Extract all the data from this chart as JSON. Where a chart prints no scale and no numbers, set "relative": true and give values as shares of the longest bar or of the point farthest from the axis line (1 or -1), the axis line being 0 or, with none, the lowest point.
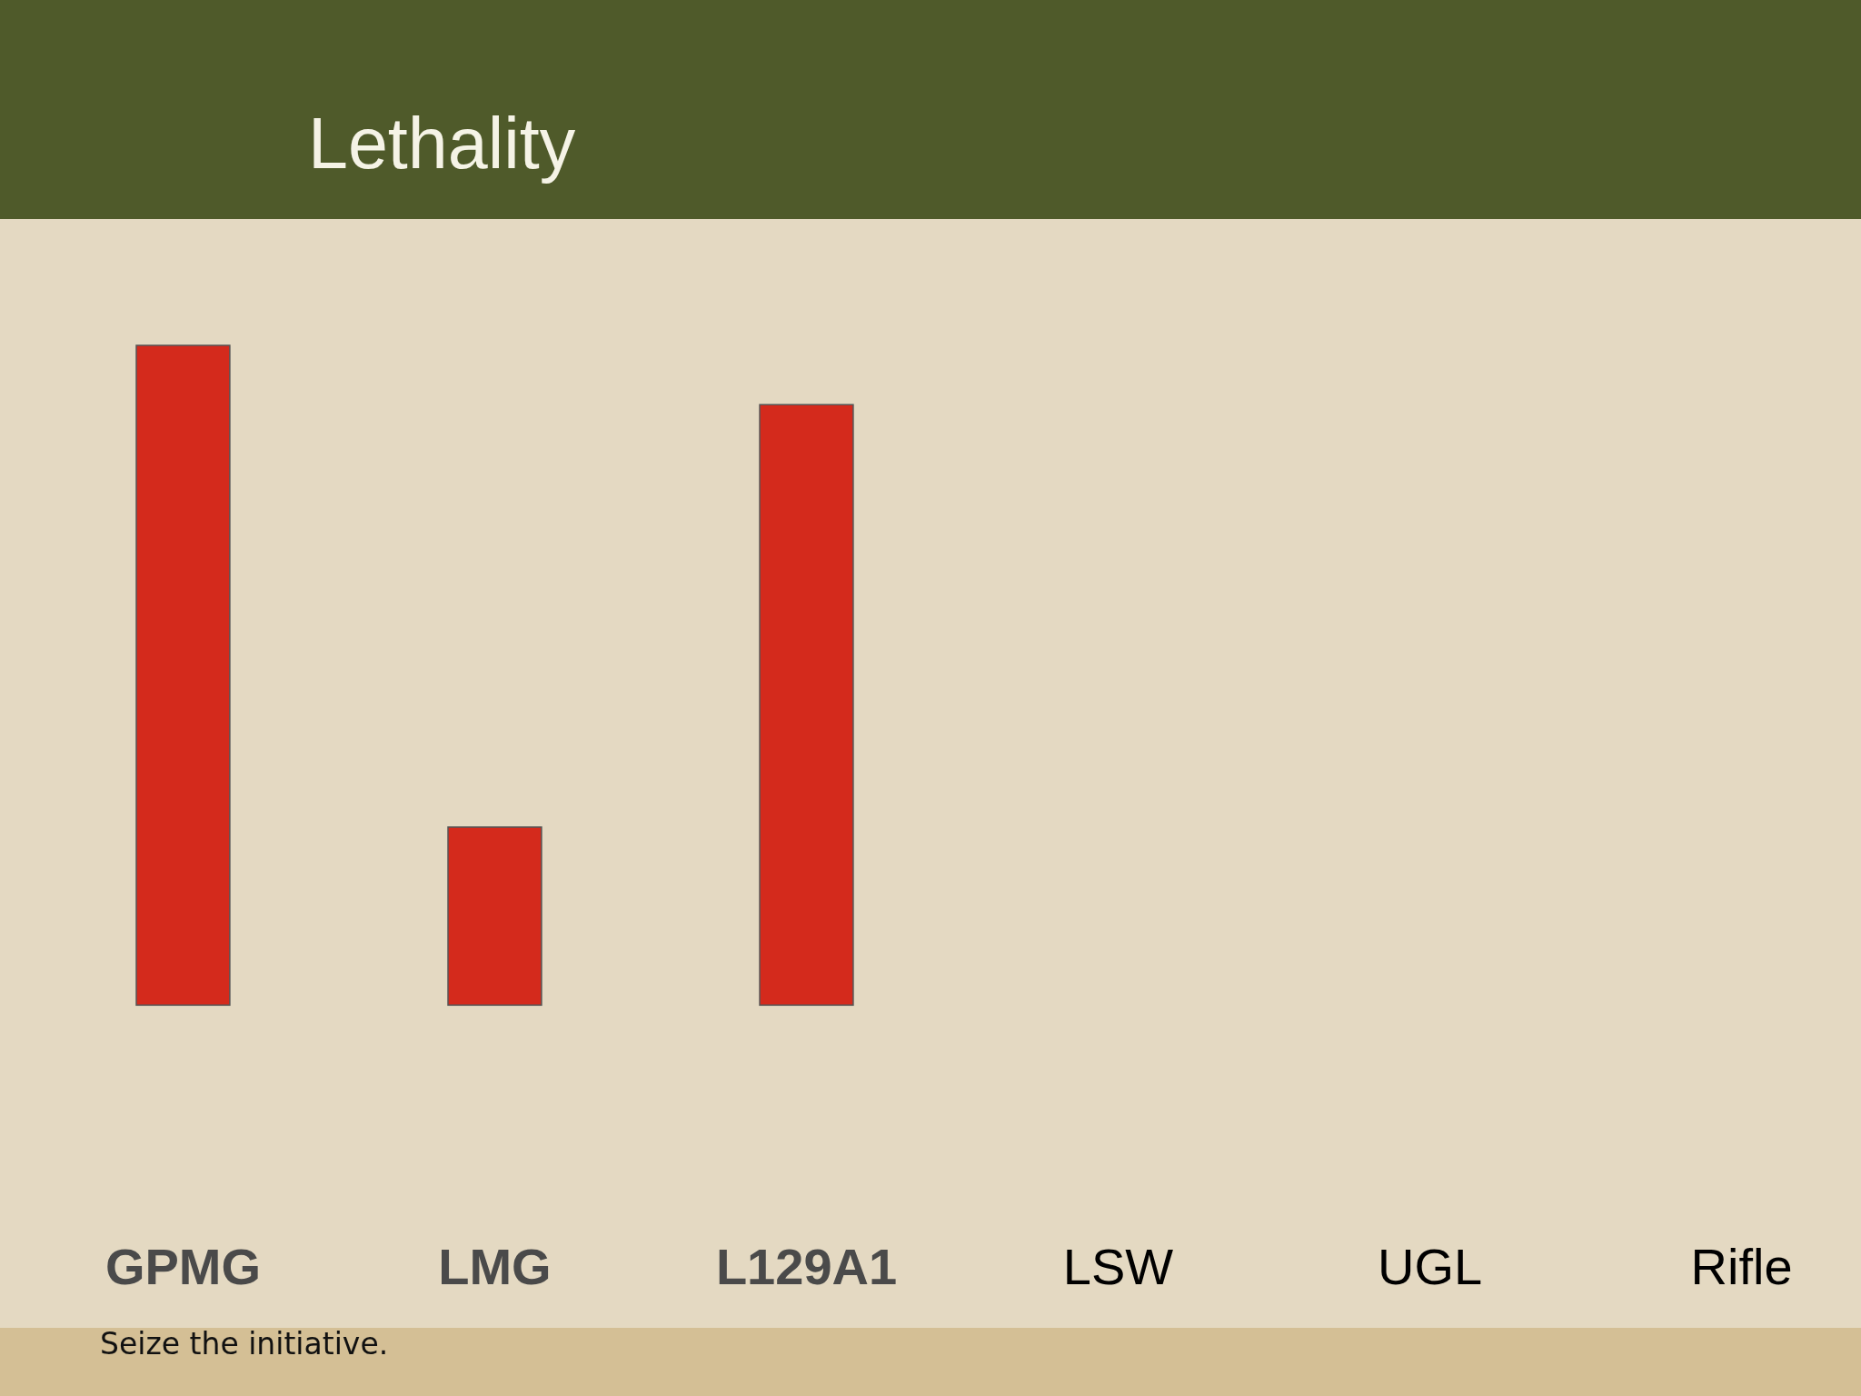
{
  "chart_data": {
    "type": "bar",
    "title": "Lethality",
    "categories": [
      "GPMG",
      "LMG",
      "L129A1",
      "LSW",
      "UGL",
      "Rifle"
    ],
    "values": [
      1,
      0.27,
      0.91,
      null,
      null,
      null
    ],
    "color": "#d42a1c",
    "relative": true,
    "annotations": [
      "Seize the initiative."
    ]
  }
}
